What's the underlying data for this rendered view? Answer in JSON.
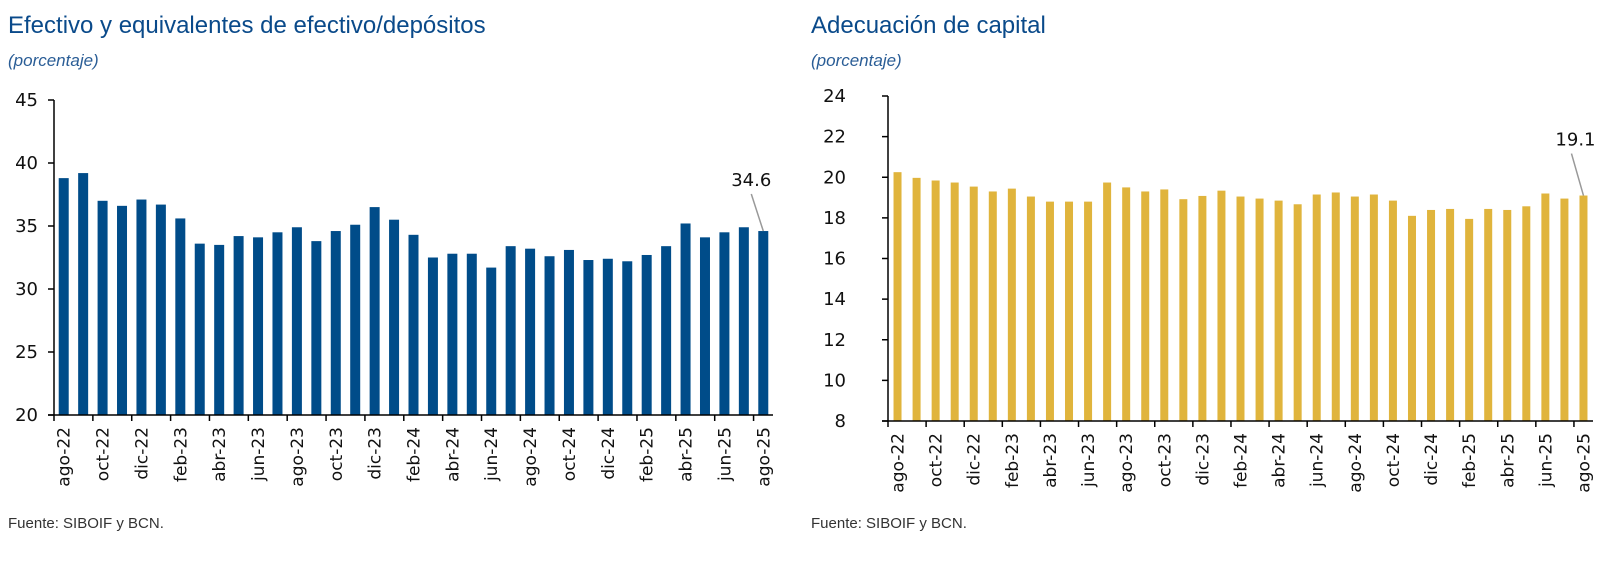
{
  "chart_data": [
    {
      "type": "bar",
      "title": "Efectivo y equivalentes de efectivo/depósitos",
      "subtitle": "(porcentaje)",
      "source": "Fuente: SIBOIF y BCN.",
      "xlabel": "",
      "ylabel": "",
      "ylim": [
        20,
        45
      ],
      "yticks": [
        "20",
        "25",
        "30",
        "35",
        "40",
        "45"
      ],
      "grid": false,
      "color": "#004c89",
      "categories": [
        "ago-22",
        "sep-22",
        "oct-22",
        "nov-22",
        "dic-22",
        "ene-23",
        "feb-23",
        "mar-23",
        "abr-23",
        "may-23",
        "jun-23",
        "jul-23",
        "ago-23",
        "sep-23",
        "oct-23",
        "nov-23",
        "dic-23",
        "ene-24",
        "feb-24",
        "mar-24",
        "abr-24",
        "may-24",
        "jun-24",
        "jul-24",
        "ago-24",
        "sep-24",
        "oct-24",
        "nov-24",
        "dic-24",
        "ene-25",
        "feb-25",
        "mar-25",
        "abr-25",
        "may-25",
        "jun-25",
        "jul-25",
        "ago-25"
      ],
      "tick_labels": [
        "ago-22",
        "oct-22",
        "dic-22",
        "feb-23",
        "abr-23",
        "jun-23",
        "ago-23",
        "oct-23",
        "dic-23",
        "feb-24",
        "abr-24",
        "jun-24",
        "ago-24",
        "oct-24",
        "dic-24",
        "feb-25",
        "abr-25",
        "jun-25",
        "ago-25"
      ],
      "values": [
        38.8,
        39.2,
        37.0,
        36.6,
        37.1,
        36.7,
        35.6,
        33.6,
        33.5,
        34.2,
        34.1,
        34.5,
        34.9,
        33.8,
        34.6,
        35.1,
        36.5,
        35.5,
        34.3,
        32.5,
        32.8,
        32.8,
        31.7,
        33.4,
        33.2,
        32.6,
        33.1,
        32.3,
        32.4,
        32.2,
        32.7,
        33.4,
        35.2,
        34.1,
        34.5,
        34.9,
        34.6
      ],
      "annotation": {
        "label": "34.6",
        "category": "ago-25"
      }
    },
    {
      "type": "bar",
      "title": "Adecuación de capital",
      "subtitle": "(porcentaje)",
      "source": "Fuente: SIBOIF y BCN.",
      "xlabel": "",
      "ylabel": "",
      "ylim": [
        8,
        24
      ],
      "yticks": [
        "8",
        "10",
        "12",
        "14",
        "16",
        "18",
        "20",
        "22",
        "24"
      ],
      "grid": false,
      "color": "#e0b43c",
      "categories": [
        "ago-22",
        "sep-22",
        "oct-22",
        "nov-22",
        "dic-22",
        "ene-23",
        "feb-23",
        "mar-23",
        "abr-23",
        "may-23",
        "jun-23",
        "jul-23",
        "ago-23",
        "sep-23",
        "oct-23",
        "nov-23",
        "dic-23",
        "ene-24",
        "feb-24",
        "mar-24",
        "abr-24",
        "may-24",
        "jun-24",
        "jul-24",
        "ago-24",
        "sep-24",
        "oct-24",
        "nov-24",
        "dic-24",
        "ene-25",
        "feb-25",
        "mar-25",
        "abr-25",
        "may-25",
        "jun-25",
        "jul-25",
        "ago-25"
      ],
      "tick_labels": [
        "ago-22",
        "oct-22",
        "dic-22",
        "feb-23",
        "abr-23",
        "jun-23",
        "ago-23",
        "oct-23",
        "dic-23",
        "feb-24",
        "abr-24",
        "jun-24",
        "ago-24",
        "oct-24",
        "dic-24",
        "feb-25",
        "abr-25",
        "jun-25",
        "ago-25"
      ],
      "values": [
        20.25,
        19.97,
        19.84,
        19.74,
        19.54,
        19.3,
        19.44,
        19.05,
        18.8,
        18.8,
        18.8,
        19.74,
        19.5,
        19.3,
        19.4,
        18.92,
        19.08,
        19.34,
        19.05,
        18.95,
        18.85,
        18.67,
        19.15,
        19.25,
        19.05,
        19.15,
        18.85,
        18.1,
        18.39,
        18.44,
        17.95,
        18.44,
        18.39,
        18.57,
        19.2,
        18.95,
        19.1
      ],
      "annotation": {
        "label": "19.1",
        "category": "ago-25"
      }
    }
  ]
}
